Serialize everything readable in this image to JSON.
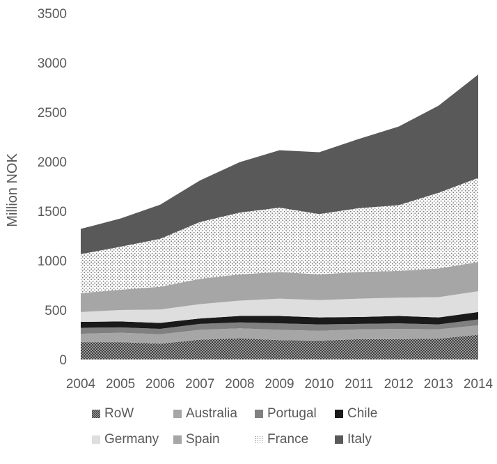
{
  "chart_data": {
    "type": "area",
    "stacked": true,
    "title": "",
    "xlabel": "",
    "ylabel": "Million NOK",
    "ylim": [
      0,
      3500
    ],
    "yticks": [
      0,
      500,
      1000,
      1500,
      2000,
      2500,
      3000,
      3500
    ],
    "grid": false,
    "legend_position": "bottom",
    "x": [
      "2004",
      "2005",
      "2006",
      "2007",
      "2008",
      "2009",
      "2010",
      "2011",
      "2012",
      "2013",
      "2014"
    ],
    "series": [
      {
        "name": "RoW",
        "color": "#595959",
        "pattern": "checker",
        "values": [
          175,
          175,
          160,
          200,
          215,
          195,
          190,
          205,
          205,
          210,
          250
        ]
      },
      {
        "name": "Australia",
        "color": "#a6a6a6",
        "pattern": "solid",
        "values": [
          85,
          95,
          95,
          100,
          100,
          105,
          100,
          100,
          105,
          95,
          95
        ]
      },
      {
        "name": "Portugal",
        "color": "#808080",
        "pattern": "solid",
        "values": [
          60,
          55,
          55,
          60,
          60,
          65,
          65,
          55,
          55,
          50,
          60
        ]
      },
      {
        "name": "Chile",
        "color": "#1a1a1a",
        "pattern": "solid",
        "values": [
          60,
          60,
          60,
          55,
          65,
          75,
          70,
          70,
          75,
          70,
          75
        ]
      },
      {
        "name": "Germany",
        "color": "#dedede",
        "pattern": "solid",
        "values": [
          100,
          115,
          135,
          145,
          155,
          175,
          175,
          185,
          185,
          205,
          210
        ]
      },
      {
        "name": "Spain",
        "color": "#a6a6a6",
        "pattern": "solid",
        "values": [
          190,
          205,
          230,
          255,
          265,
          270,
          260,
          270,
          270,
          290,
          295
        ]
      },
      {
        "name": "France",
        "color": "#bfbfbf",
        "pattern": "dots",
        "values": [
          395,
          435,
          485,
          575,
          625,
          650,
          610,
          645,
          665,
          765,
          850
        ]
      },
      {
        "name": "Italy",
        "color": "#595959",
        "pattern": "solid",
        "values": [
          255,
          285,
          345,
          420,
          510,
          580,
          625,
          700,
          795,
          880,
          1045
        ]
      }
    ]
  }
}
